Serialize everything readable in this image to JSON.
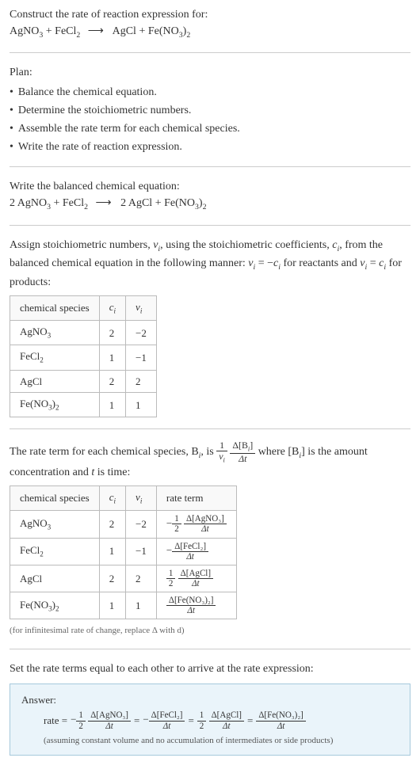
{
  "prompt": {
    "title": "Construct the rate of reaction expression for:",
    "equation_lhs_1": "AgNO",
    "equation_lhs_1_sub": "3",
    "equation_lhs_2": "FeCl",
    "equation_lhs_2_sub": "2",
    "equation_rhs_1": "AgCl",
    "equation_rhs_2": "Fe(NO",
    "equation_rhs_2_sub1": "3",
    "equation_rhs_2_close": ")",
    "equation_rhs_2_sub2": "2",
    "arrow": "⟶"
  },
  "plan": {
    "label": "Plan:",
    "items": [
      "Balance the chemical equation.",
      "Determine the stoichiometric numbers.",
      "Assemble the rate term for each chemical species.",
      "Write the rate of reaction expression."
    ]
  },
  "balanced": {
    "label": "Write the balanced chemical equation:",
    "c1": "2",
    "s1": "AgNO",
    "s1_sub": "3",
    "s2": "FeCl",
    "s2_sub": "2",
    "arrow": "⟶",
    "c3": "2",
    "s3": "AgCl",
    "s4": "Fe(NO",
    "s4_sub1": "3",
    "s4_close": ")",
    "s4_sub2": "2"
  },
  "stoich": {
    "intro_part1": "Assign stoichiometric numbers, ",
    "nu_i": "ν",
    "nu_i_sub": "i",
    "intro_part2": ", using the stoichiometric coefficients, ",
    "c_i": "c",
    "c_i_sub": "i",
    "intro_part3": ", from the balanced chemical equation in the following manner: ",
    "rel1_lhs": "ν",
    "rel1_eq": " = −",
    "rel1_rhs": "c",
    "intro_part4": " for reactants and ",
    "rel2_eq": " = ",
    "intro_part5": " for products:",
    "headers": [
      "chemical species",
      "c",
      "ν"
    ],
    "header_sub": "i",
    "rows": [
      {
        "species": "AgNO",
        "sp_sub": "3",
        "ci": "2",
        "vi": "−2"
      },
      {
        "species": "FeCl",
        "sp_sub": "2",
        "ci": "1",
        "vi": "−1"
      },
      {
        "species": "AgCl",
        "sp_sub": "",
        "ci": "2",
        "vi": "2"
      },
      {
        "species": "Fe(NO₃)₂",
        "sp_sub": "",
        "ci": "1",
        "vi": "1"
      }
    ],
    "fe_label": "Fe(NO",
    "fe_sub1": "3",
    "fe_close": ")",
    "fe_sub2": "2"
  },
  "rateterm": {
    "intro_p1": "The rate term for each chemical species, B",
    "intro_p2": ", is ",
    "frac1_num": "1",
    "frac1_den_sym": "ν",
    "frac2_num": "Δ[B",
    "frac2_num_close": "]",
    "frac2_den": "Δt",
    "intro_p3": " where [B",
    "intro_p4": "] is the amount concentration and ",
    "t_label": "t",
    "intro_p5": " is time:",
    "headers": [
      "chemical species",
      "c",
      "ν",
      "rate term"
    ],
    "header_sub": "i",
    "rows": [
      {
        "ci": "2",
        "vi": "−2",
        "neg": "−",
        "coef_num": "1",
        "coef_den": "2",
        "conc": "Δ[AgNO₃]",
        "dt": "Δt"
      },
      {
        "ci": "1",
        "vi": "−1",
        "neg": "−",
        "coef_num": "",
        "coef_den": "",
        "conc": "Δ[FeCl₂]",
        "dt": "Δt"
      },
      {
        "ci": "2",
        "vi": "2",
        "neg": "",
        "coef_num": "1",
        "coef_den": "2",
        "conc": "Δ[AgCl]",
        "dt": "Δt"
      },
      {
        "ci": "1",
        "vi": "1",
        "neg": "",
        "coef_num": "",
        "coef_den": "",
        "conc": "Δ[Fe(NO₃)₂]",
        "dt": "Δt"
      }
    ],
    "note": "(for infinitesimal rate of change, replace Δ with d)"
  },
  "final": {
    "label": "Set the rate terms equal to each other to arrive at the rate expression:",
    "answer_label": "Answer:",
    "rate_label": "rate = ",
    "t1_neg": "−",
    "t1_num": "1",
    "t1_den": "2",
    "t1_conc": "Δ[AgNO₃]",
    "dt": "Δt",
    "eq": " = ",
    "t2_neg": "−",
    "t2_conc": "Δ[FeCl₂]",
    "t3_num": "1",
    "t3_den": "2",
    "t3_conc": "Δ[AgCl]",
    "t4_conc": "Δ[Fe(NO₃)₂]",
    "note": "(assuming constant volume and no accumulation of intermediates or side products)"
  },
  "colors": {
    "answer_bg": "#eaf4fa",
    "answer_border": "#a6c9dc",
    "table_border": "#bbbbbb",
    "divider": "#cccccc",
    "text": "#333333"
  }
}
